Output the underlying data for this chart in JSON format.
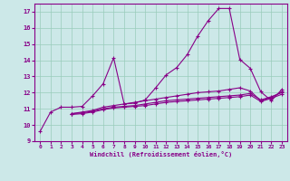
{
  "xlabel": "Windchill (Refroidissement éolien,°C)",
  "xlim": [
    -0.5,
    23.5
  ],
  "ylim": [
    9,
    17.5
  ],
  "yticks": [
    9,
    10,
    11,
    12,
    13,
    14,
    15,
    16,
    17
  ],
  "xticks": [
    0,
    1,
    2,
    3,
    4,
    5,
    6,
    7,
    8,
    9,
    10,
    11,
    12,
    13,
    14,
    15,
    16,
    17,
    18,
    19,
    20,
    21,
    22,
    23
  ],
  "bg_color": "#cce8e8",
  "line_color": "#880088",
  "grid_color": "#99ccbb",
  "lines": [
    [
      9.6,
      10.8,
      11.1,
      11.1,
      11.15,
      11.8,
      12.55,
      14.15,
      11.3,
      11.35,
      11.55,
      12.3,
      13.1,
      13.55,
      14.35,
      15.5,
      16.45,
      17.2,
      17.2,
      14.05,
      13.5,
      12.05,
      11.5,
      12.2
    ],
    [
      null,
      null,
      null,
      10.7,
      10.8,
      10.9,
      11.1,
      11.2,
      11.3,
      11.4,
      11.5,
      11.6,
      11.7,
      11.8,
      11.9,
      12.0,
      12.05,
      12.1,
      12.2,
      12.3,
      12.1,
      11.5,
      11.7,
      12.05
    ],
    [
      null,
      null,
      null,
      10.7,
      10.75,
      10.85,
      11.0,
      11.1,
      11.15,
      11.2,
      11.3,
      11.4,
      11.5,
      11.55,
      11.6,
      11.65,
      11.7,
      11.75,
      11.8,
      11.85,
      11.95,
      11.55,
      11.75,
      12.0
    ],
    [
      null,
      null,
      null,
      10.65,
      10.7,
      10.8,
      10.95,
      11.05,
      11.1,
      11.15,
      11.2,
      11.3,
      11.4,
      11.45,
      11.5,
      11.55,
      11.6,
      11.65,
      11.7,
      11.75,
      11.85,
      11.45,
      11.65,
      11.9
    ]
  ]
}
